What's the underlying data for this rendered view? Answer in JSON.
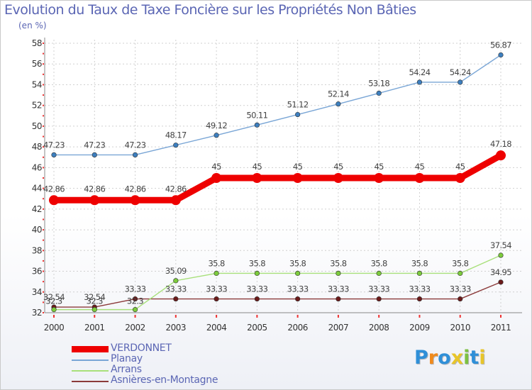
{
  "chart_data": {
    "type": "line",
    "title": "Evolution du Taux de Taxe Foncière sur les Propriétés Non Bâties",
    "ylabel": "(en %)",
    "xlabel": "",
    "ylim": [
      32,
      58
    ],
    "yticks": [
      32,
      34,
      36,
      38,
      40,
      42,
      44,
      46,
      48,
      50,
      52,
      54,
      56,
      58
    ],
    "x": [
      "2000",
      "2001",
      "2002",
      "2003",
      "2004",
      "2005",
      "2006",
      "2007",
      "2008",
      "2009",
      "2010",
      "2011"
    ],
    "series": [
      {
        "name": "VERDONNET",
        "color": "#ee0000",
        "marker": "#ee0000",
        "values": [
          42.86,
          42.86,
          42.86,
          42.86,
          45,
          45,
          45,
          45,
          45,
          45,
          45,
          47.18
        ],
        "labels": [
          "42.86",
          "42.86",
          "42.86",
          "42.86",
          "45",
          "45",
          "45",
          "45",
          "45",
          "45",
          "45",
          "47.18"
        ]
      },
      {
        "name": "Planay",
        "color": "#7aa6d6",
        "marker": "#3d7fbf",
        "values": [
          47.23,
          47.23,
          47.23,
          48.17,
          49.12,
          50.11,
          51.12,
          52.14,
          53.18,
          54.24,
          54.24,
          56.87
        ],
        "labels": [
          "47.23",
          "47.23",
          "47.23",
          "48.17",
          "49.12",
          "50.11",
          "51.12",
          "52.14",
          "53.18",
          "54.24",
          "54.24",
          "56.87"
        ]
      },
      {
        "name": "Arrans",
        "color": "#a8e07a",
        "marker": "#7ccb3c",
        "values": [
          32.3,
          32.3,
          32.3,
          35.09,
          35.8,
          35.8,
          35.8,
          35.8,
          35.8,
          35.8,
          35.8,
          37.54
        ],
        "labels": [
          "32.3",
          "32.3",
          "32.3",
          "35.09",
          "35.8",
          "35.8",
          "35.8",
          "35.8",
          "35.8",
          "35.8",
          "35.8",
          "37.54"
        ]
      },
      {
        "name": "Asnières-en-Montagne",
        "color": "#8b3a3a",
        "marker": "#6b1a1a",
        "values": [
          32.54,
          32.54,
          33.33,
          33.33,
          33.33,
          33.33,
          33.33,
          33.33,
          33.33,
          33.33,
          33.33,
          34.95
        ],
        "labels": [
          "32.54",
          "32.54",
          "33.33",
          "33.33",
          "33.33",
          "33.33",
          "33.33",
          "33.33",
          "33.33",
          "33.33",
          "33.33",
          "34.95"
        ]
      }
    ],
    "legend_position": "bottom-left"
  },
  "logo": {
    "letters": [
      "P",
      "r",
      "o",
      "x",
      "i",
      "t",
      "i"
    ],
    "colors": [
      "#2f8fd8",
      "#f08a1c",
      "#2f8fd8",
      "#e8c52a",
      "#7dc142",
      "#2f8fd8",
      "#e8c52a"
    ]
  }
}
